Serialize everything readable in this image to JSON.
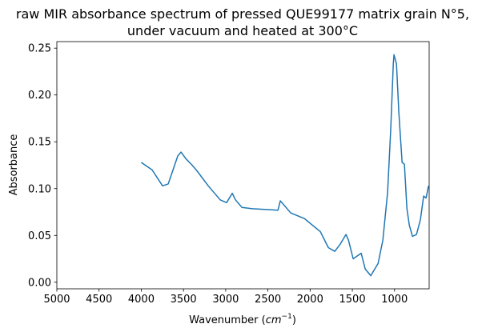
{
  "chart_data": {
    "type": "line",
    "title": [
      "raw MIR absorbance spectrum of pressed QUE99177 matrix grain N°5,",
      "under vacuum and heated at 300°C"
    ],
    "xlabel": "Wavenumber",
    "xlabel_unit": "cm",
    "xlabel_unit_exp": "−1",
    "ylabel": "Absorbance",
    "xlim": [
      5000,
      590
    ],
    "ylim": [
      -0.007,
      0.257
    ],
    "x_reversed": true,
    "grid": false,
    "xticks": [
      5000,
      4500,
      4000,
      3500,
      3000,
      2500,
      2000,
      1500,
      1000
    ],
    "xtick_labels": [
      "5000",
      "4500",
      "4000",
      "3500",
      "3000",
      "2500",
      "2000",
      "1500",
      "1000"
    ],
    "yticks": [
      0,
      0.05,
      0.1,
      0.15,
      0.2,
      0.25
    ],
    "ytick_labels": [
      "0.00",
      "0.05",
      "0.10",
      "0.15",
      "0.20",
      "0.25"
    ],
    "series": [
      {
        "color": "#1f77b4",
        "x": [
          4000,
          3871,
          3748,
          3681,
          3567,
          3529,
          3472,
          3397,
          3340,
          3207,
          3065,
          2989,
          2922,
          2884,
          2808,
          2685,
          2381,
          2353,
          2306,
          2230,
          2068,
          1879,
          1784,
          1708,
          1641,
          1575,
          1546,
          1490,
          1395,
          1347,
          1281,
          1195,
          1138,
          1082,
          1044,
          1015,
          1006,
          977,
          949,
          911,
          883,
          854,
          825,
          787,
          740,
          693,
          655,
          626,
          598
        ],
        "y": [
          0.128,
          0.12,
          0.103,
          0.105,
          0.135,
          0.139,
          0.132,
          0.125,
          0.119,
          0.103,
          0.088,
          0.085,
          0.095,
          0.088,
          0.08,
          0.0785,
          0.077,
          0.087,
          0.082,
          0.074,
          0.068,
          0.054,
          0.037,
          0.033,
          0.041,
          0.051,
          0.045,
          0.025,
          0.031,
          0.014,
          0.007,
          0.02,
          0.045,
          0.096,
          0.165,
          0.233,
          0.243,
          0.233,
          0.182,
          0.128,
          0.126,
          0.079,
          0.061,
          0.049,
          0.051,
          0.067,
          0.092,
          0.09,
          0.103
        ]
      }
    ]
  }
}
